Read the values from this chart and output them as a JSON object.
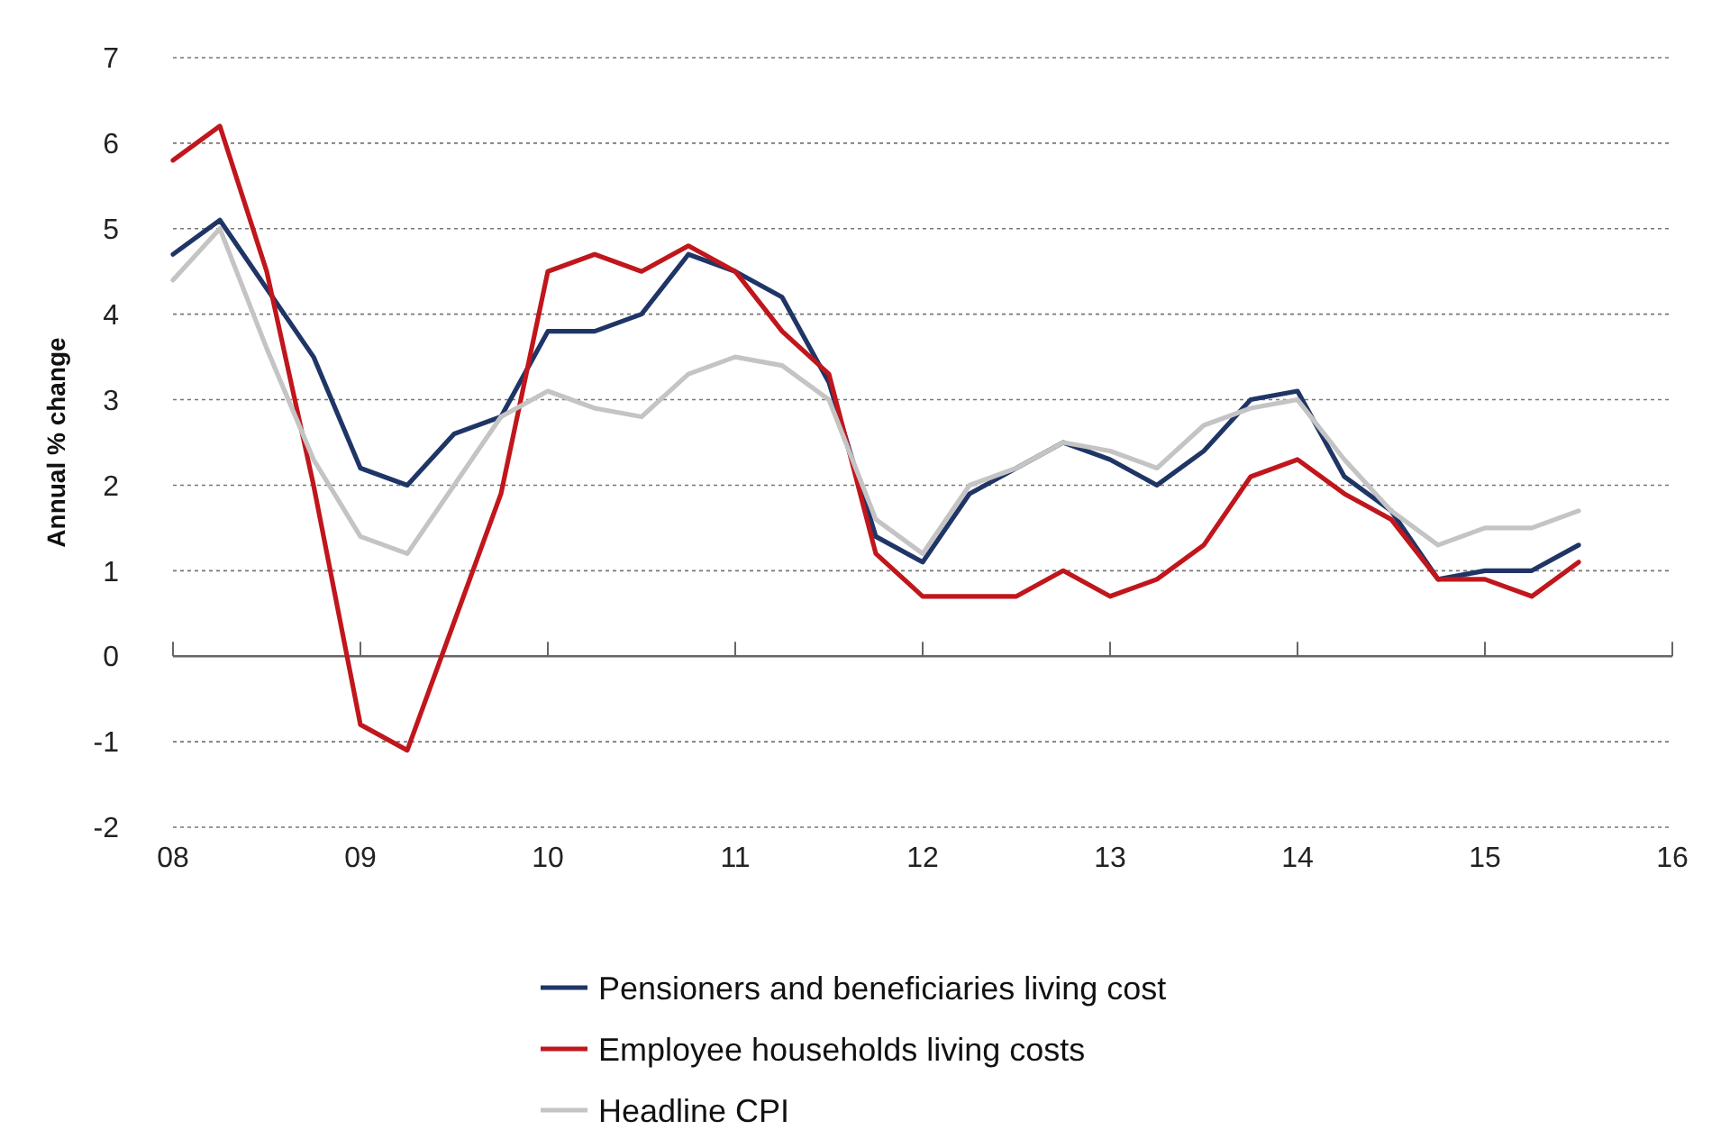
{
  "chart_data": {
    "type": "line",
    "ylabel": "Annual % change",
    "x": [
      2008,
      2008.25,
      2008.5,
      2008.75,
      2009,
      2009.25,
      2009.5,
      2009.75,
      2010,
      2010.25,
      2010.5,
      2010.75,
      2011,
      2011.25,
      2011.5,
      2011.75,
      2012,
      2012.25,
      2012.5,
      2012.75,
      2013,
      2013.25,
      2013.5,
      2013.75,
      2014,
      2014.25,
      2014.5,
      2014.75,
      2015,
      2015.25,
      2015.5
    ],
    "series": [
      {
        "name": "Pensioners and beneficiaries living cost",
        "color": "#1f3566",
        "values": [
          4.7,
          5.1,
          4.3,
          3.5,
          2.2,
          2.0,
          2.6,
          2.8,
          3.8,
          3.8,
          4.0,
          4.7,
          4.5,
          4.2,
          3.2,
          1.4,
          1.1,
          1.9,
          2.2,
          2.5,
          2.3,
          2.0,
          2.4,
          3.0,
          3.1,
          2.1,
          1.7,
          0.9,
          1.0,
          1.0,
          1.3
        ]
      },
      {
        "name": "Employee households living costs",
        "color": "#c0161c",
        "values": [
          5.8,
          6.2,
          4.5,
          2.0,
          -0.8,
          -1.1,
          0.4,
          1.9,
          4.5,
          4.7,
          4.5,
          4.8,
          4.5,
          3.8,
          3.3,
          1.2,
          0.7,
          0.7,
          0.7,
          1.0,
          0.7,
          0.9,
          1.3,
          2.1,
          2.3,
          1.9,
          1.6,
          0.9,
          0.9,
          0.7,
          1.1
        ]
      },
      {
        "name": "Headline CPI",
        "color": "#c4c4c4",
        "values": [
          4.4,
          5.0,
          3.6,
          2.3,
          1.4,
          1.2,
          2.0,
          2.8,
          3.1,
          2.9,
          2.8,
          3.3,
          3.5,
          3.4,
          3.0,
          1.6,
          1.2,
          2.0,
          2.2,
          2.5,
          2.4,
          2.2,
          2.7,
          2.9,
          3.0,
          2.3,
          1.7,
          1.3,
          1.5,
          1.5,
          1.7
        ]
      }
    ],
    "xlim": [
      2008,
      2016
    ],
    "xticks": [
      {
        "value": 2008,
        "label": "08"
      },
      {
        "value": 2009,
        "label": "09"
      },
      {
        "value": 2010,
        "label": "10"
      },
      {
        "value": 2011,
        "label": "11"
      },
      {
        "value": 2012,
        "label": "12"
      },
      {
        "value": 2013,
        "label": "13"
      },
      {
        "value": 2014,
        "label": "14"
      },
      {
        "value": 2015,
        "label": "15"
      },
      {
        "value": 2016,
        "label": "16"
      }
    ],
    "ylim": [
      -2,
      7
    ],
    "yticks": [
      -2,
      -1,
      0,
      1,
      2,
      3,
      4,
      5,
      6,
      7
    ],
    "grid": "y",
    "legend": "bottom",
    "line_style": "solid"
  }
}
